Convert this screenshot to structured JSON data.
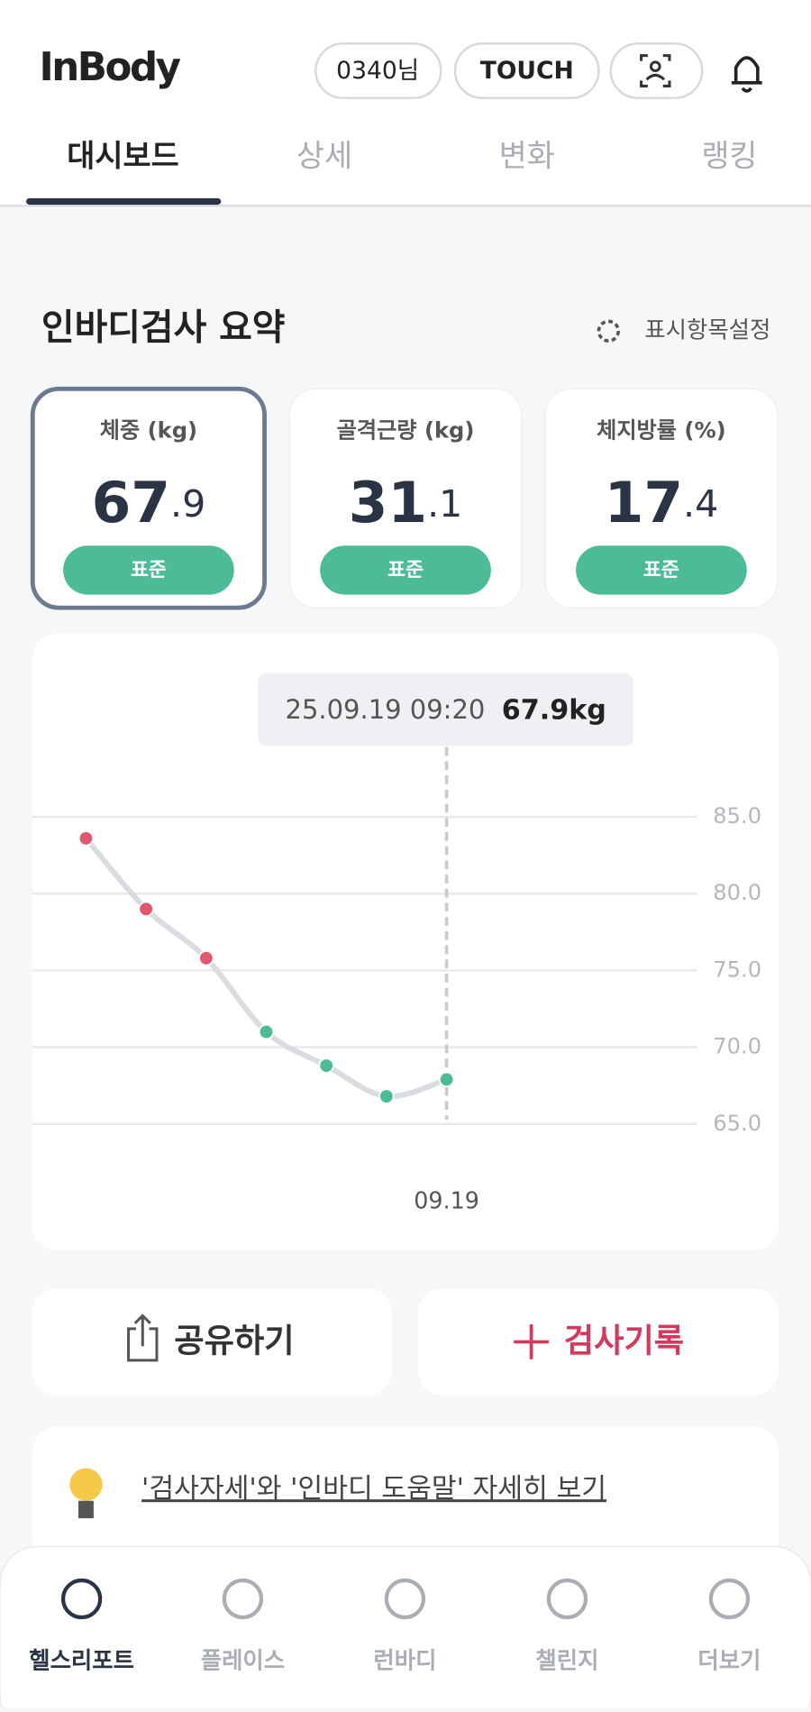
{
  "header": {
    "logo": "InBody",
    "user": "0340님",
    "touch": "TOUCH"
  },
  "tabs": [
    "대시보드",
    "상세",
    "변화",
    "랭킹"
  ],
  "section": {
    "title": "인바디검사 요약",
    "settings": "표시항목설정"
  },
  "cards": [
    {
      "label": "체중 (kg)",
      "value_int": "67",
      "value_dec": ".9",
      "status": "표준"
    },
    {
      "label": "골격근량 (kg)",
      "value_int": "31",
      "value_dec": ".1",
      "status": "표준"
    },
    {
      "label": "체지방률 (%)",
      "value_int": "17",
      "value_dec": ".4",
      "status": "표준"
    }
  ],
  "chart_data": {
    "type": "line",
    "categories": [
      null,
      null,
      null,
      null,
      null,
      null,
      "09.19"
    ],
    "series": [
      {
        "name": null,
        "color": "#d9dce1",
        "values": [
          83.6,
          79.0,
          75.8,
          71.0,
          68.8,
          66.8,
          67.9
        ]
      }
    ],
    "point_colors": [
      "#e0576f",
      "#e0576f",
      "#e0576f",
      "#4cbb98",
      "#4cbb98",
      "#4cbb98",
      "#4cbb98"
    ],
    "ylim": [
      65,
      85
    ],
    "yticks": [
      {
        "value": 85,
        "label": "85.0"
      },
      {
        "value": 80,
        "label": "80.0"
      },
      {
        "value": 75,
        "label": "75.0"
      },
      {
        "value": 70,
        "label": "70.0"
      },
      {
        "value": 65,
        "label": "65.0"
      }
    ],
    "grid": true,
    "tooltip": {
      "date": "25.09.19 09:20",
      "label": "67.9kg"
    }
  },
  "buttons": {
    "share": "공유하기",
    "record": "검사기록"
  },
  "help": "'검사자세'와 '인바디 도움말' 자세히 보기",
  "nav": [
    "헬스리포트",
    "플레이스",
    "런바디",
    "챌린지",
    "더보기"
  ]
}
